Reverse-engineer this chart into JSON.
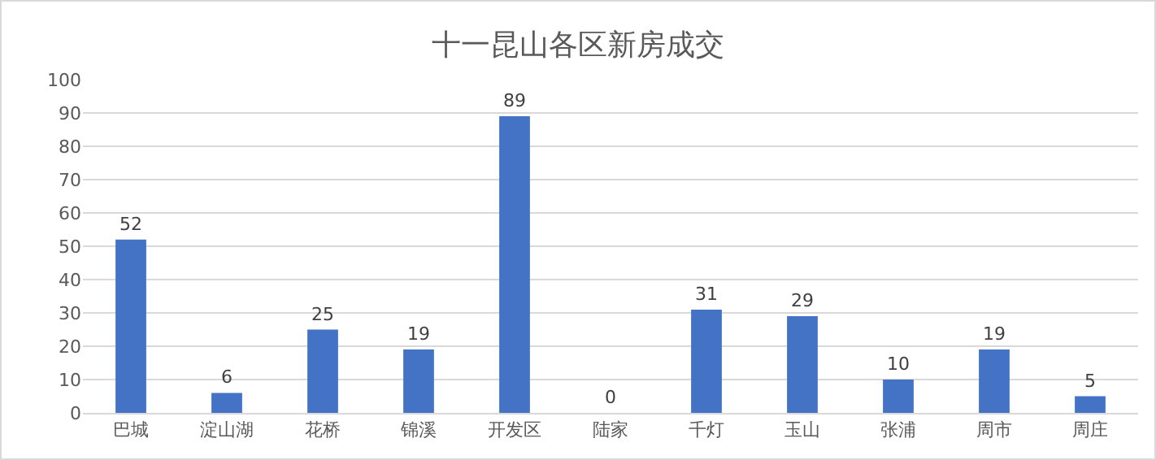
{
  "chart_data": {
    "type": "bar",
    "title": "十一昆山各区新房成交",
    "categories": [
      "巴城",
      "淀山湖",
      "花桥",
      "锦溪",
      "开发区",
      "陆家",
      "千灯",
      "玉山",
      "张浦",
      "周市",
      "周庄"
    ],
    "values": [
      52,
      6,
      25,
      19,
      89,
      0,
      31,
      29,
      10,
      19,
      5
    ],
    "color": "#4472c4",
    "ylim": [
      0,
      100
    ],
    "yticks": [
      0,
      10,
      20,
      30,
      40,
      50,
      60,
      70,
      80,
      90,
      100
    ],
    "grid": "y",
    "data_labels": true
  }
}
